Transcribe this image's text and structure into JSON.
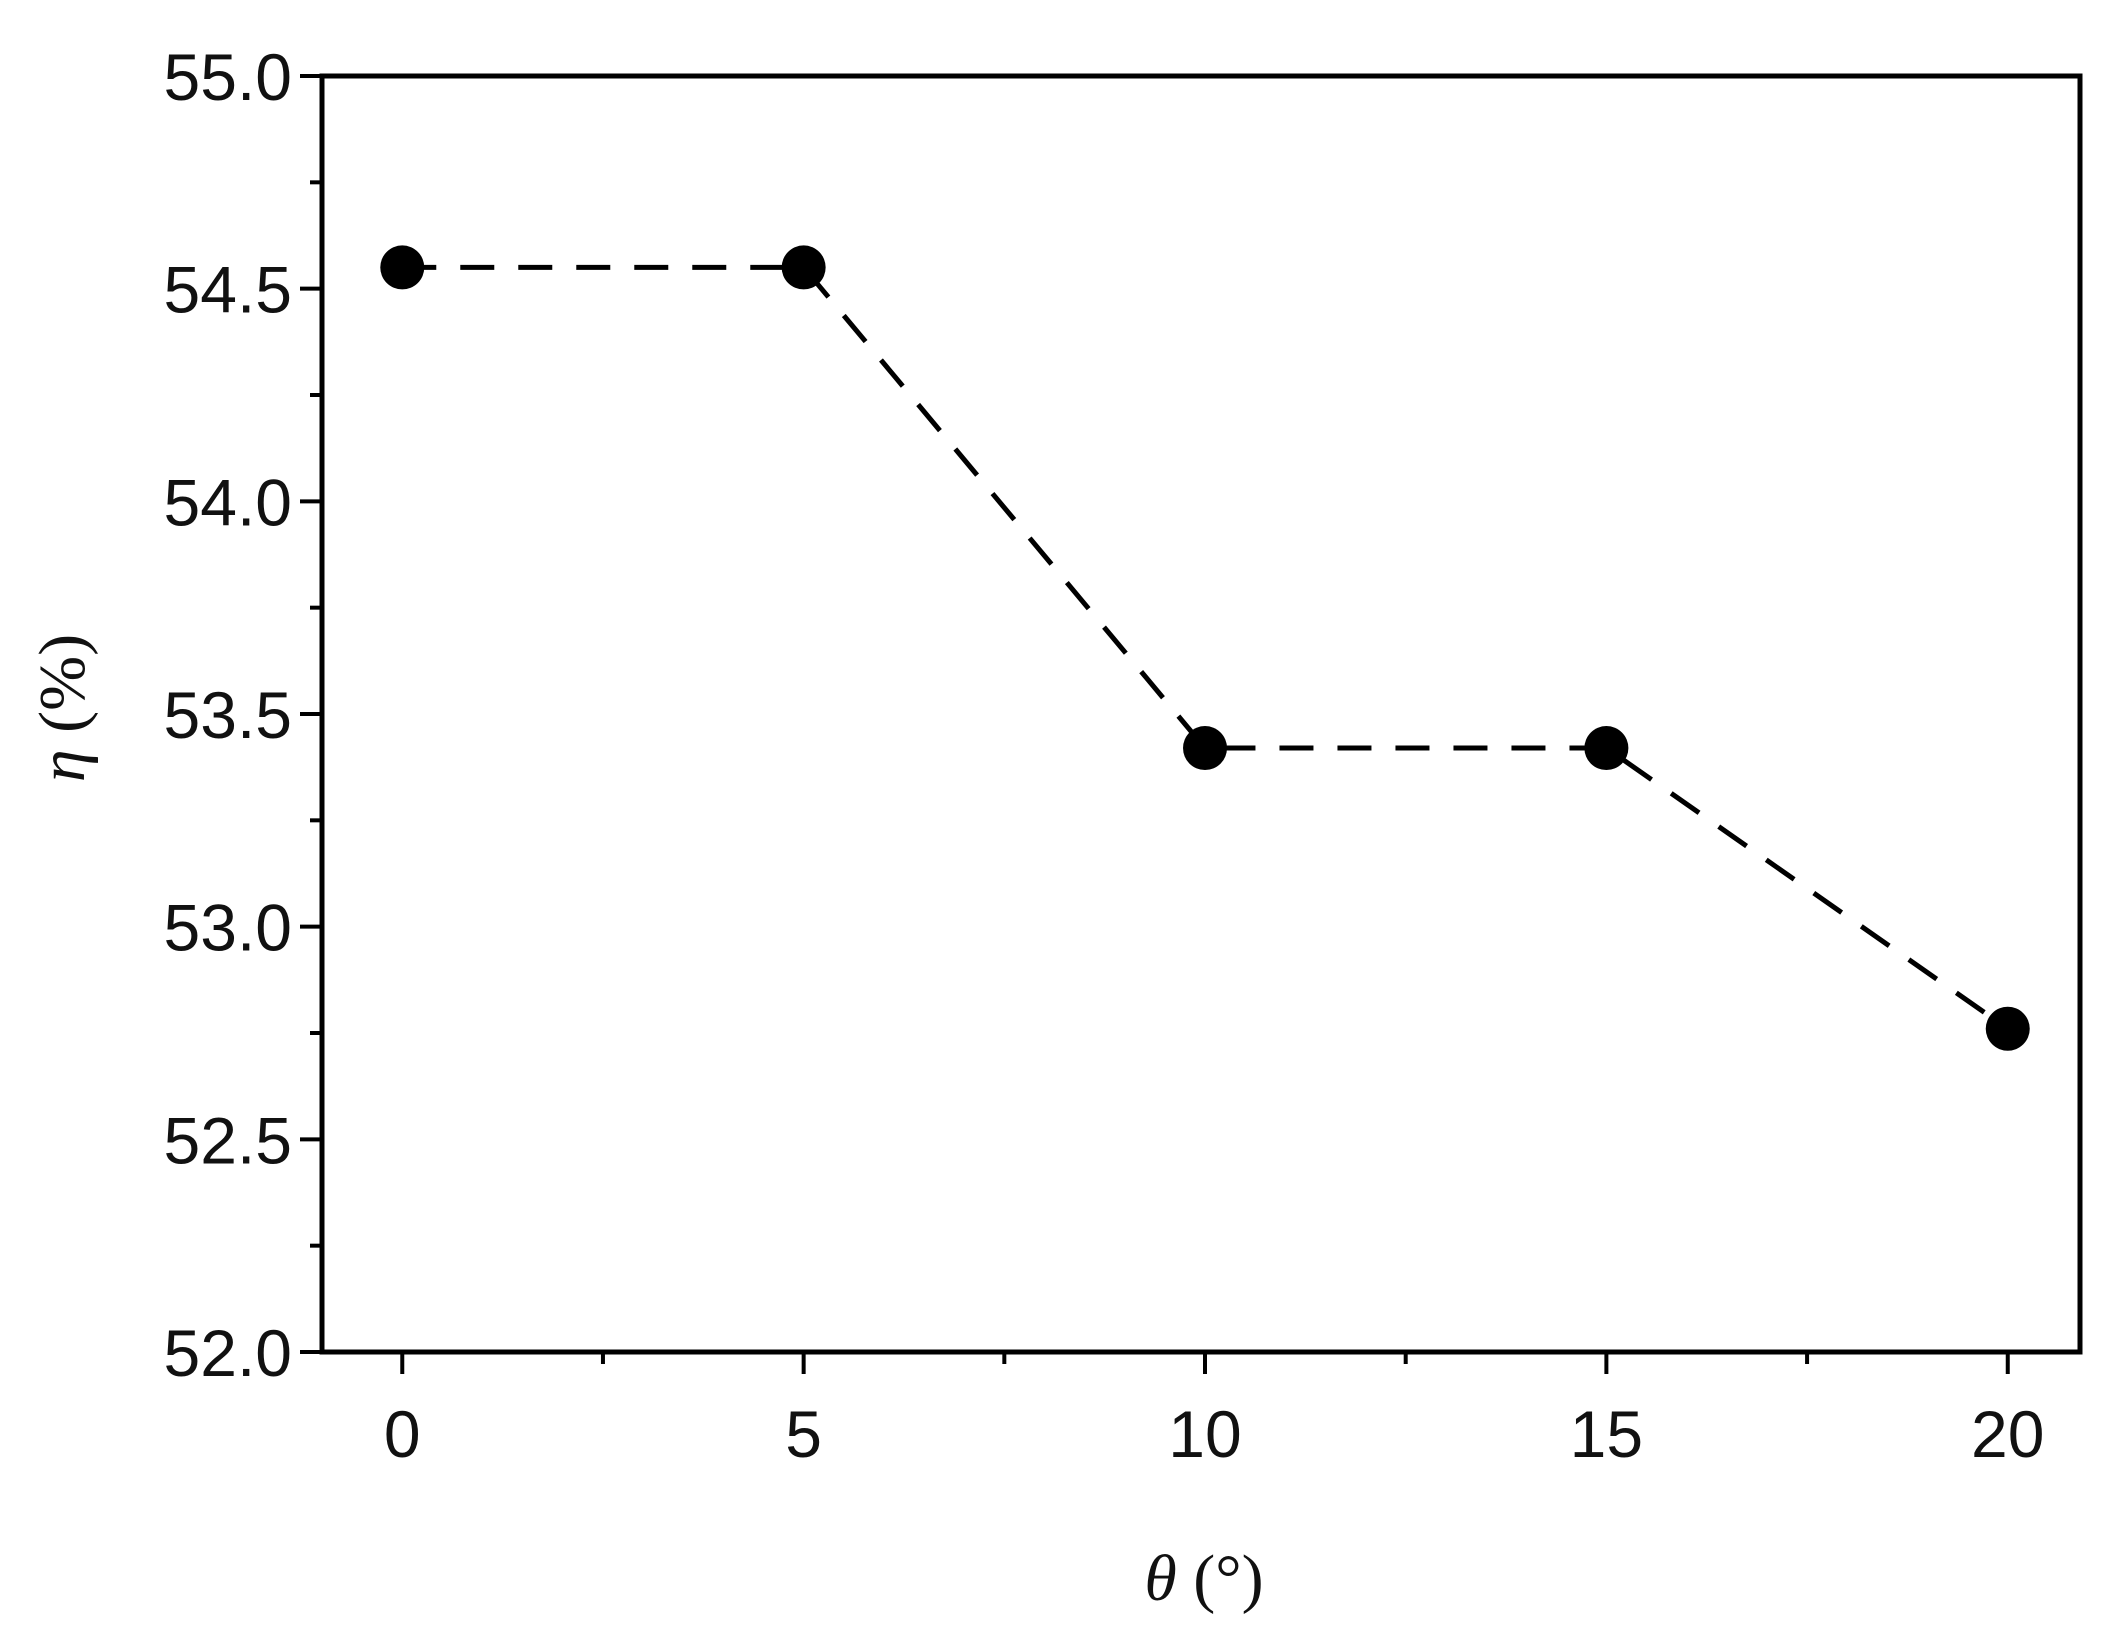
{
  "chart_data": {
    "type": "line",
    "title": "",
    "xlabel": {
      "symbol": "θ",
      "unit": " (°)"
    },
    "ylabel": {
      "symbol": "η",
      "unit": " (%)"
    },
    "xlim": [
      -1,
      20.9
    ],
    "ylim": [
      52.0,
      55.0
    ],
    "x_ticks": [
      0,
      5,
      10,
      15,
      20
    ],
    "x_tick_labels": [
      "0",
      "5",
      "10",
      "15",
      "20"
    ],
    "x_minor_ticks": [
      2.5,
      7.5,
      12.5,
      17.5
    ],
    "y_ticks": [
      52.0,
      52.5,
      53.0,
      53.5,
      54.0,
      54.5,
      55.0
    ],
    "y_tick_labels": [
      "52.0",
      "52.5",
      "53.0",
      "53.5",
      "54.0",
      "54.5",
      "55.0"
    ],
    "y_minor_ticks": [
      52.25,
      52.75,
      53.25,
      53.75,
      54.25,
      54.75
    ],
    "grid": false,
    "legend": "none",
    "series": [
      {
        "x": [
          0,
          5,
          10,
          15,
          20
        ],
        "y": [
          54.55,
          54.55,
          53.42,
          53.42,
          52.76
        ],
        "line_style": "dashed",
        "marker": "filled-circle",
        "color": "#000000"
      }
    ]
  }
}
